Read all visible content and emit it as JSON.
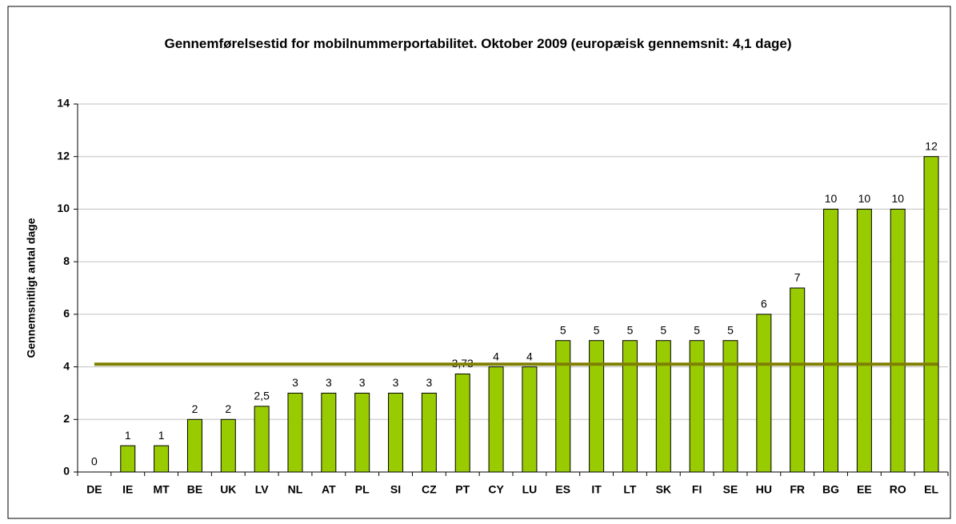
{
  "chart_data": {
    "type": "bar",
    "title": "Gennemførelsestid for mobilnummerportabilitet. Oktober 2009 (europæisk gennemsnit: 4,1 dage)",
    "y_label": "Gennemsnitligt antal dage",
    "categories": [
      "DE",
      "IE",
      "MT",
      "BE",
      "UK",
      "LV",
      "NL",
      "AT",
      "PL",
      "SI",
      "CZ",
      "PT",
      "CY",
      "LU",
      "ES",
      "IT",
      "LT",
      "SK",
      "FI",
      "SE",
      "HU",
      "FR",
      "BG",
      "EE",
      "RO",
      "EL"
    ],
    "values": [
      0,
      1,
      1,
      2,
      2,
      2.5,
      3,
      3,
      3,
      3,
      3,
      3.73,
      4,
      4,
      5,
      5,
      5,
      5,
      5,
      5,
      6,
      7,
      10,
      10,
      10,
      12
    ],
    "value_labels": [
      "0",
      "1",
      "1",
      "2",
      "2",
      "2,5",
      "3",
      "3",
      "3",
      "3",
      "3",
      "3,73",
      "4",
      "4",
      "5",
      "5",
      "5",
      "5",
      "5",
      "5",
      "6",
      "7",
      "10",
      "10",
      "10",
      "12"
    ],
    "color": "#99cc00",
    "reference_line": {
      "value": 4.1,
      "color": "#808000"
    },
    "ylim": [
      0,
      14
    ],
    "yticks": [
      0,
      2,
      4,
      6,
      8,
      10,
      12,
      14
    ],
    "grid": true
  }
}
